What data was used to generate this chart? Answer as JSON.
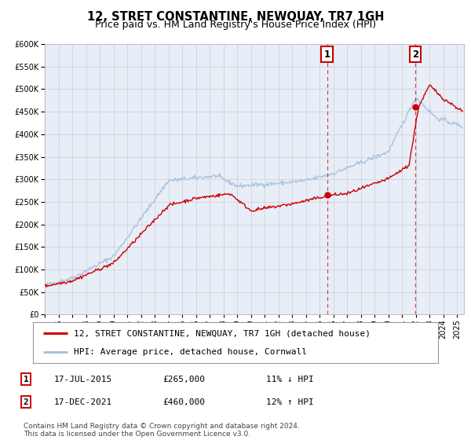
{
  "title": "12, STRET CONSTANTINE, NEWQUAY, TR7 1GH",
  "subtitle": "Price paid vs. HM Land Registry's House Price Index (HPI)",
  "ylim": [
    0,
    600000
  ],
  "yticks": [
    0,
    50000,
    100000,
    150000,
    200000,
    250000,
    300000,
    350000,
    400000,
    450000,
    500000,
    550000,
    600000
  ],
  "xlim_start": 1995.0,
  "xlim_end": 2025.5,
  "hpi_color": "#a8c4e0",
  "price_color": "#cc0000",
  "marker_color": "#cc0000",
  "vline_color": "#cc0000",
  "grid_color": "#cccccc",
  "bg_color": "#ffffff",
  "plot_bg_color": "#e8eef8",
  "transaction1_year": 2015.54,
  "transaction1_price": 265000,
  "transaction2_year": 2021.96,
  "transaction2_price": 460000,
  "legend_property_label": "12, STRET CONSTANTINE, NEWQUAY, TR7 1GH (detached house)",
  "legend_hpi_label": "HPI: Average price, detached house, Cornwall",
  "annotation1_date": "17-JUL-2015",
  "annotation1_price": "£265,000",
  "annotation1_hpi": "11% ↓ HPI",
  "annotation2_date": "17-DEC-2021",
  "annotation2_price": "£460,000",
  "annotation2_hpi": "12% ↑ HPI",
  "footer": "Contains HM Land Registry data © Crown copyright and database right 2024.\nThis data is licensed under the Open Government Licence v3.0.",
  "title_fontsize": 10.5,
  "subtitle_fontsize": 9,
  "tick_fontsize": 7,
  "legend_fontsize": 8,
  "annotation_fontsize": 8,
  "footer_fontsize": 6.5
}
